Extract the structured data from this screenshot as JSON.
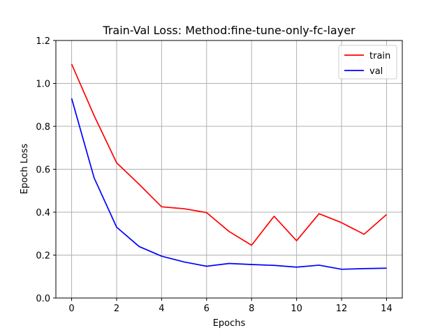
{
  "chart_data": {
    "type": "line",
    "title": "Train-Val Loss: Method:fine-tune-only-fc-layer",
    "xlabel": "Epochs",
    "ylabel": "Epoch Loss",
    "xlim": [
      -0.7,
      14.7
    ],
    "ylim": [
      0.0,
      1.2
    ],
    "xticks": [
      0,
      2,
      4,
      6,
      8,
      10,
      12,
      14
    ],
    "yticks": [
      0.0,
      0.2,
      0.4,
      0.6,
      0.8,
      1.0,
      1.2
    ],
    "xtick_labels": [
      "0",
      "2",
      "4",
      "6",
      "8",
      "10",
      "12",
      "14"
    ],
    "ytick_labels": [
      "0.0",
      "0.2",
      "0.4",
      "0.6",
      "0.8",
      "1.0",
      "1.2"
    ],
    "grid": true,
    "legend_position": "top-right",
    "x": [
      0,
      1,
      2,
      3,
      4,
      5,
      6,
      7,
      8,
      9,
      10,
      11,
      12,
      13,
      14
    ],
    "series": [
      {
        "name": "train",
        "color": "#ff0000",
        "values": [
          1.09,
          0.85,
          0.63,
          0.53,
          0.425,
          0.416,
          0.398,
          0.31,
          0.246,
          0.381,
          0.267,
          0.393,
          0.351,
          0.297,
          0.389
        ]
      },
      {
        "name": "val",
        "color": "#0000ff",
        "values": [
          0.93,
          0.56,
          0.33,
          0.24,
          0.195,
          0.168,
          0.148,
          0.161,
          0.156,
          0.152,
          0.144,
          0.153,
          0.134,
          0.137,
          0.139
        ]
      }
    ]
  }
}
